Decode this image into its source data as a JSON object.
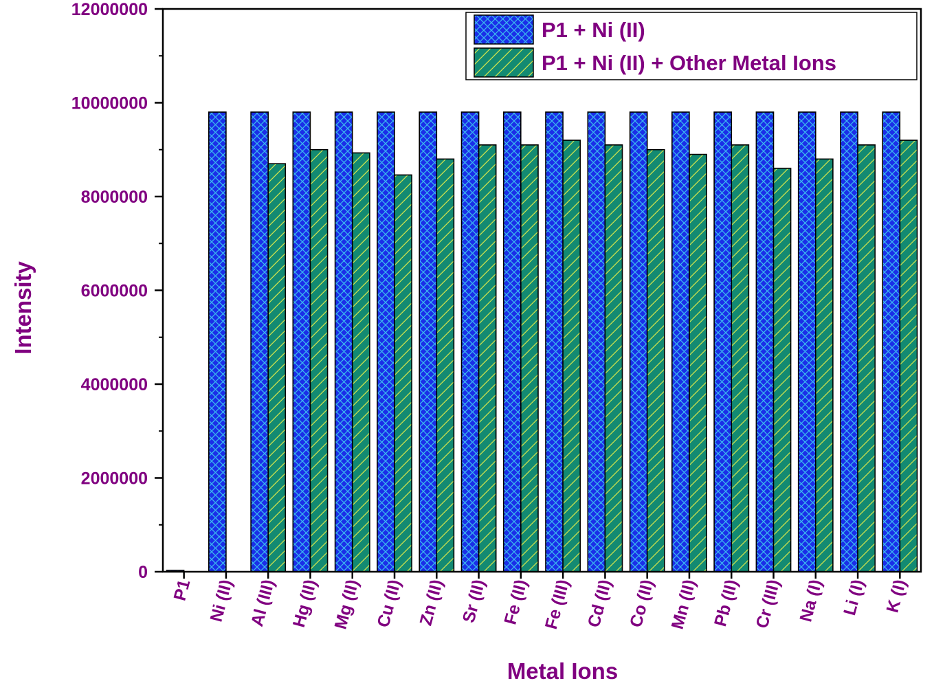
{
  "chart_data": {
    "type": "bar",
    "xlabel": "Metal Ions",
    "ylabel": "Intensity",
    "ylim": [
      0,
      12000000
    ],
    "yticks": [
      0,
      2000000,
      4000000,
      6000000,
      8000000,
      10000000,
      12000000
    ],
    "grid": false,
    "legend_position": "top-right",
    "categories": [
      "P1",
      "Ni (II)",
      "Al (III)",
      "Hg (II)",
      "Mg (II)",
      "Cu (II)",
      "Zn (II)",
      "Sr (II)",
      "Fe (II)",
      "Fe (III)",
      "Cd (II)",
      "Co (II)",
      "Mn (II)",
      "Pb (II)",
      "Cr (III)",
      "Na (I)",
      "Li (I)",
      "K (I)"
    ],
    "series": [
      {
        "name": "P1 + Ni (II)",
        "color": "#1a2ee8",
        "pattern": "crosshatch",
        "values": [
          30000,
          9800000,
          9800000,
          9800000,
          9800000,
          9800000,
          9800000,
          9800000,
          9800000,
          9800000,
          9800000,
          9800000,
          9800000,
          9800000,
          9800000,
          9800000,
          9800000,
          9800000
        ]
      },
      {
        "name": "P1 + Ni (II) + Other Metal Ions",
        "color": "#138a72",
        "pattern": "diagonal",
        "values": [
          null,
          null,
          8700000,
          9000000,
          8930000,
          8460000,
          8800000,
          9100000,
          9100000,
          9200000,
          9100000,
          9000000,
          8900000,
          9100000,
          8600000,
          8800000,
          9100000,
          9200000
        ]
      }
    ]
  }
}
